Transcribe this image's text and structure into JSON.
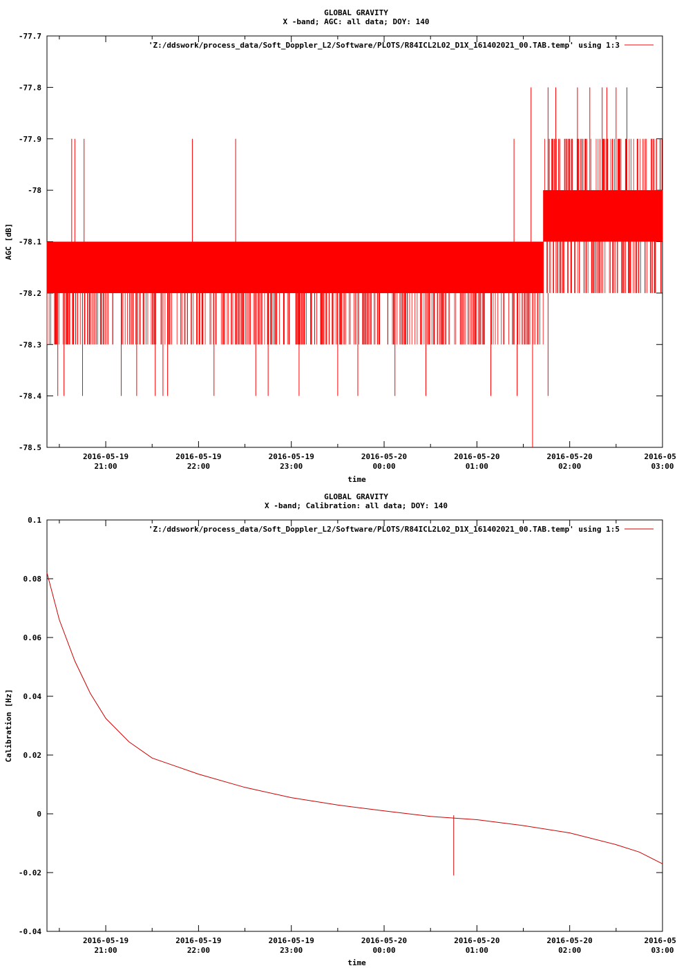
{
  "chart_data": [
    {
      "type": "line",
      "title": "GLOBAL GRAVITY",
      "subtitle": "X -band; AGC: all data; DOY: 140",
      "xlabel": "time",
      "ylabel": "AGC [dB]",
      "x_ticks": [
        {
          "date": "2016-05-19",
          "time": "21:00"
        },
        {
          "date": "2016-05-19",
          "time": "22:00"
        },
        {
          "date": "2016-05-19",
          "time": "23:00"
        },
        {
          "date": "2016-05-20",
          "time": "00:00"
        },
        {
          "date": "2016-05-20",
          "time": "01:00"
        },
        {
          "date": "2016-05-20",
          "time": "02:00"
        },
        {
          "date": "2016-05-",
          "time": "03:00"
        }
      ],
      "xlim": [
        "2016-05-19 20:22",
        "2016-05-20 03:00"
      ],
      "y_ticks": [
        "-77.7",
        "-77.8",
        "-77.9",
        "-78",
        "-78.1",
        "-78.2",
        "-78.3",
        "-78.4",
        "-78.5"
      ],
      "ylim": [
        -78.5,
        -77.7
      ],
      "legend": {
        "label": "'Z:/ddswork/process_data/Soft_Doppler_L2/Software/PLOTS/R84ICL2L02_D1X_161402021_00.TAB.temp' using 1:3",
        "position": "top-right"
      },
      "series_color": "#ff0000",
      "series": [
        {
          "segments": [
            {
              "start": "20:22",
              "end": "01:43",
              "low": -78.3,
              "high": -78.1,
              "typical_low": -78.2,
              "typical_high": -78.1
            },
            {
              "start": "01:43",
              "end": "03:00",
              "low": -78.2,
              "high": -77.9,
              "typical_low": -78.1,
              "typical_high": -78.0
            }
          ],
          "spikes_high": [
            {
              "time": "20:38",
              "value": -77.9
            },
            {
              "time": "20:40",
              "value": -77.9
            },
            {
              "time": "20:46",
              "value": -77.9
            },
            {
              "time": "21:56",
              "value": -77.9
            },
            {
              "time": "22:24",
              "value": -77.9
            },
            {
              "time": "01:24",
              "value": -77.9
            },
            {
              "time": "01:35",
              "value": -77.8
            },
            {
              "time": "01:46",
              "value": -77.8
            },
            {
              "time": "01:51",
              "value": -77.8
            },
            {
              "time": "02:05",
              "value": -77.8
            },
            {
              "time": "02:13",
              "value": -77.8
            },
            {
              "time": "02:21",
              "value": -77.8
            },
            {
              "time": "02:24",
              "value": -77.8
            },
            {
              "time": "02:30",
              "value": -77.8
            },
            {
              "time": "02:37",
              "value": -77.8
            }
          ],
          "spikes_low": [
            {
              "time": "20:29",
              "value": -78.4
            },
            {
              "time": "20:33",
              "value": -78.4
            },
            {
              "time": "20:45",
              "value": -78.4
            },
            {
              "time": "21:10",
              "value": -78.4
            },
            {
              "time": "21:20",
              "value": -78.4
            },
            {
              "time": "21:32",
              "value": -78.4
            },
            {
              "time": "21:37",
              "value": -78.4
            },
            {
              "time": "21:40",
              "value": -78.4
            },
            {
              "time": "22:10",
              "value": -78.4
            },
            {
              "time": "22:37",
              "value": -78.4
            },
            {
              "time": "22:45",
              "value": -78.4
            },
            {
              "time": "23:05",
              "value": -78.4
            },
            {
              "time": "23:30",
              "value": -78.4
            },
            {
              "time": "23:43",
              "value": -78.4
            },
            {
              "time": "00:07",
              "value": -78.4
            },
            {
              "time": "00:27",
              "value": -78.4
            },
            {
              "time": "01:09",
              "value": -78.4
            },
            {
              "time": "01:26",
              "value": -78.4
            },
            {
              "time": "01:36",
              "value": -78.5
            },
            {
              "time": "01:46",
              "value": -78.4
            }
          ]
        }
      ]
    },
    {
      "type": "line",
      "title": "GLOBAL GRAVITY",
      "subtitle": "X -band; Calibration: all data; DOY: 140",
      "xlabel": "time",
      "ylabel": "Calibration [Hz]",
      "x_ticks": [
        {
          "date": "2016-05-19",
          "time": "21:00"
        },
        {
          "date": "2016-05-19",
          "time": "22:00"
        },
        {
          "date": "2016-05-19",
          "time": "23:00"
        },
        {
          "date": "2016-05-20",
          "time": "00:00"
        },
        {
          "date": "2016-05-20",
          "time": "01:00"
        },
        {
          "date": "2016-05-20",
          "time": "02:00"
        },
        {
          "date": "2016-05-",
          "time": "03:00"
        }
      ],
      "xlim": [
        "2016-05-19 20:22",
        "2016-05-20 03:00"
      ],
      "y_ticks": [
        "0.1",
        "0.08",
        "0.06",
        "0.04",
        "0.02",
        "0",
        "-0.02",
        "-0.04"
      ],
      "ylim": [
        -0.04,
        0.1
      ],
      "legend": {
        "label": "'Z:/ddswork/process_data/Soft_Doppler_L2/Software/PLOTS/R84ICL2L02_D1X_161402021_00.TAB.temp' using 1:5",
        "position": "top-right"
      },
      "series_color": "#cc0000",
      "series": [
        {
          "points": [
            {
              "time": "20:22",
              "value": 0.082
            },
            {
              "time": "20:30",
              "value": 0.066
            },
            {
              "time": "20:40",
              "value": 0.052
            },
            {
              "time": "20:50",
              "value": 0.041
            },
            {
              "time": "21:00",
              "value": 0.0325
            },
            {
              "time": "21:15",
              "value": 0.0245
            },
            {
              "time": "21:30",
              "value": 0.019
            },
            {
              "time": "22:00",
              "value": 0.0135
            },
            {
              "time": "22:30",
              "value": 0.009
            },
            {
              "time": "23:00",
              "value": 0.0055
            },
            {
              "time": "23:30",
              "value": 0.003
            },
            {
              "time": "00:00",
              "value": 0.001
            },
            {
              "time": "00:30",
              "value": -0.0009
            },
            {
              "time": "01:00",
              "value": -0.002
            },
            {
              "time": "01:30",
              "value": -0.004
            },
            {
              "time": "02:00",
              "value": -0.0065
            },
            {
              "time": "02:30",
              "value": -0.0105
            },
            {
              "time": "02:45",
              "value": -0.013
            },
            {
              "time": "03:00",
              "value": -0.017
            }
          ],
          "spike": {
            "time": "00:45",
            "low": -0.021,
            "high": -0.0005
          }
        }
      ]
    }
  ]
}
